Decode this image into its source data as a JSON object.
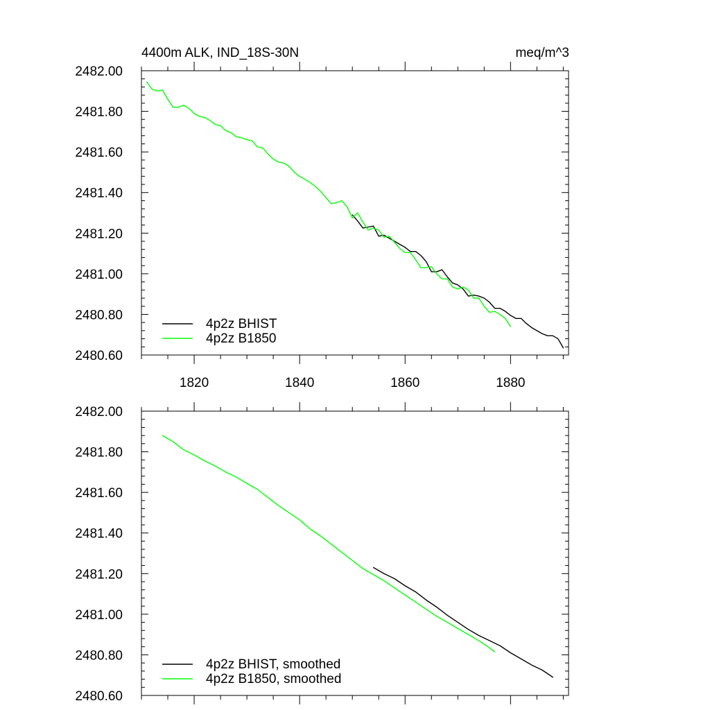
{
  "figure": {
    "title_left": "4400m ALK, IND_18S-30N",
    "title_right": "meq/m^3"
  },
  "chart_data": [
    {
      "type": "line",
      "panel": "raw",
      "xlim": [
        1810,
        1891
      ],
      "ylim": [
        2480.6,
        2482.0
      ],
      "xticks": [
        1820,
        1840,
        1860,
        1880
      ],
      "xtick_labels": [
        "1820",
        "1840",
        "1860",
        "1880"
      ],
      "show_xtick_labels": true,
      "yticks": [
        2480.6,
        2480.8,
        2481.0,
        2481.2,
        2481.4,
        2481.6,
        2481.8,
        2482.0
      ],
      "ytick_labels": [
        "2480.60",
        "2480.80",
        "2481.00",
        "2481.20",
        "2481.40",
        "2481.60",
        "2481.80",
        "2482.00"
      ],
      "legend_position": "bottom-left",
      "series": [
        {
          "name": "4p2z BHIST",
          "color": "#000000",
          "x": [
            1850,
            1851,
            1852,
            1853,
            1854,
            1855,
            1856,
            1857,
            1858,
            1859,
            1860,
            1861,
            1862,
            1863,
            1864,
            1865,
            1866,
            1867,
            1868,
            1869,
            1870,
            1871,
            1872,
            1873,
            1874,
            1875,
            1876,
            1877,
            1878,
            1879,
            1880,
            1881,
            1882,
            1883,
            1884,
            1885,
            1886,
            1887,
            1888,
            1889,
            1890
          ],
          "y": [
            2481.29,
            2481.26,
            2481.225,
            2481.23,
            2481.235,
            2481.185,
            2481.19,
            2481.175,
            2481.16,
            2481.145,
            2481.13,
            2481.11,
            2481.11,
            2481.09,
            2481.06,
            2481.01,
            2481.01,
            2481.02,
            2480.985,
            2480.955,
            2480.945,
            2480.925,
            2480.89,
            2480.895,
            2480.89,
            2480.88,
            2480.86,
            2480.83,
            2480.83,
            2480.815,
            2480.795,
            2480.78,
            2480.78,
            2480.755,
            2480.735,
            2480.72,
            2480.705,
            2480.695,
            2480.695,
            2480.68,
            2480.635
          ]
        },
        {
          "name": "4p2z B1850",
          "color": "#00ff00",
          "x": [
            1811,
            1812,
            1813,
            1814,
            1815,
            1816,
            1817,
            1818,
            1819,
            1820,
            1821,
            1822,
            1823,
            1824,
            1825,
            1826,
            1827,
            1828,
            1829,
            1830,
            1831,
            1832,
            1833,
            1834,
            1835,
            1836,
            1837,
            1838,
            1839,
            1840,
            1841,
            1842,
            1843,
            1844,
            1845,
            1846,
            1847,
            1848,
            1849,
            1850,
            1851,
            1852,
            1853,
            1854,
            1855,
            1856,
            1857,
            1858,
            1859,
            1860,
            1861,
            1862,
            1863,
            1864,
            1865,
            1866,
            1867,
            1868,
            1869,
            1870,
            1871,
            1872,
            1873,
            1874,
            1875,
            1876,
            1877,
            1878,
            1879,
            1880
          ],
          "y": [
            2481.945,
            2481.91,
            2481.9,
            2481.905,
            2481.86,
            2481.82,
            2481.82,
            2481.83,
            2481.815,
            2481.79,
            2481.775,
            2481.77,
            2481.755,
            2481.735,
            2481.73,
            2481.705,
            2481.695,
            2481.675,
            2481.67,
            2481.66,
            2481.655,
            2481.625,
            2481.62,
            2481.59,
            2481.565,
            2481.55,
            2481.545,
            2481.53,
            2481.5,
            2481.48,
            2481.465,
            2481.45,
            2481.43,
            2481.405,
            2481.375,
            2481.345,
            2481.35,
            2481.36,
            2481.33,
            2481.275,
            2481.3,
            2481.255,
            2481.215,
            2481.225,
            2481.215,
            2481.18,
            2481.185,
            2481.155,
            2481.125,
            2481.105,
            2481.105,
            2481.07,
            2481.03,
            2481.03,
            2481.035,
            2481.0,
            2480.975,
            2480.975,
            2480.935,
            2480.925,
            2480.935,
            2480.92,
            2480.88,
            2480.88,
            2480.84,
            2480.81,
            2480.815,
            2480.8,
            2480.78,
            2480.74
          ]
        }
      ]
    },
    {
      "type": "line",
      "panel": "smoothed",
      "xlim": [
        1810,
        1891
      ],
      "ylim": [
        2480.6,
        2482.0
      ],
      "xticks": [
        1820,
        1840,
        1860,
        1880
      ],
      "xtick_labels": [],
      "show_xtick_labels": false,
      "yticks": [
        2480.6,
        2480.8,
        2481.0,
        2481.2,
        2481.4,
        2481.6,
        2481.8,
        2482.0
      ],
      "ytick_labels": [
        "2480.60",
        "2480.80",
        "2481.00",
        "2481.20",
        "2481.40",
        "2481.60",
        "2481.80",
        "2482.00"
      ],
      "legend_position": "bottom-left",
      "series": [
        {
          "name": "4p2z BHIST, smoothed",
          "color": "#000000",
          "x": [
            1854,
            1856,
            1858,
            1860,
            1862,
            1864,
            1866,
            1868,
            1870,
            1872,
            1874,
            1876,
            1878,
            1880,
            1882,
            1884,
            1886,
            1888
          ],
          "y": [
            2481.23,
            2481.2,
            2481.175,
            2481.14,
            2481.11,
            2481.07,
            2481.035,
            2480.995,
            2480.96,
            2480.925,
            2480.895,
            2480.87,
            2480.845,
            2480.81,
            2480.78,
            2480.75,
            2480.725,
            2480.69
          ]
        },
        {
          "name": "4p2z B1850, smoothed",
          "color": "#00ff00",
          "x": [
            1814,
            1816,
            1818,
            1820,
            1822,
            1824,
            1826,
            1828,
            1830,
            1832,
            1834,
            1836,
            1838,
            1840,
            1842,
            1844,
            1846,
            1848,
            1850,
            1852,
            1854,
            1856,
            1858,
            1860,
            1862,
            1864,
            1866,
            1868,
            1870,
            1872,
            1874,
            1876,
            1877
          ],
          "y": [
            2481.88,
            2481.85,
            2481.81,
            2481.785,
            2481.755,
            2481.73,
            2481.7,
            2481.675,
            2481.645,
            2481.615,
            2481.575,
            2481.535,
            2481.5,
            2481.465,
            2481.42,
            2481.385,
            2481.345,
            2481.305,
            2481.265,
            2481.225,
            2481.195,
            2481.165,
            2481.13,
            2481.095,
            2481.06,
            2481.025,
            2480.99,
            2480.96,
            2480.93,
            2480.9,
            2480.87,
            2480.835,
            2480.815
          ]
        }
      ]
    }
  ]
}
